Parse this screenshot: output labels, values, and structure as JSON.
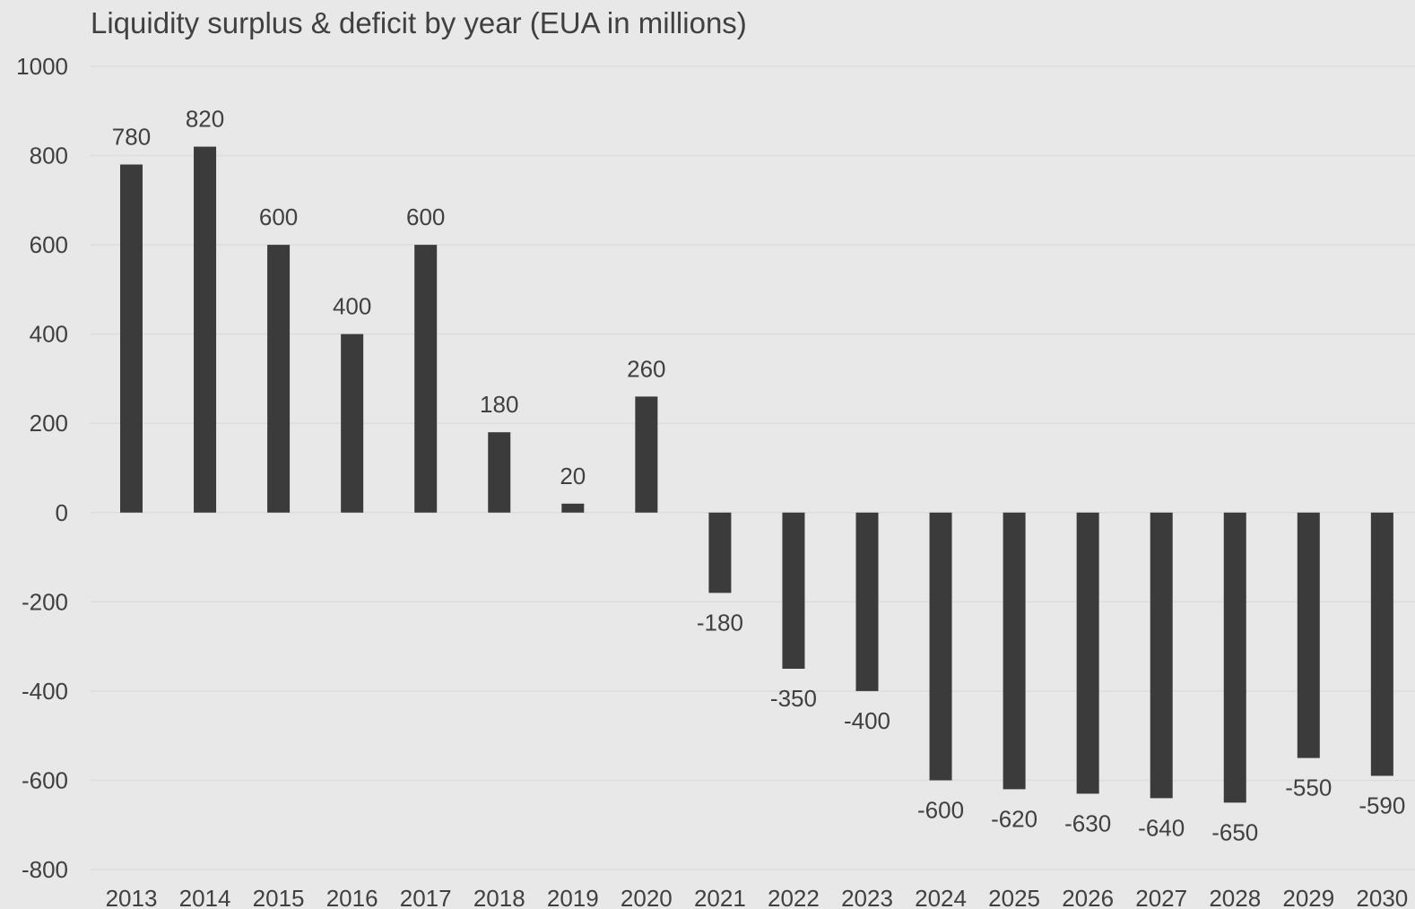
{
  "chart_data": {
    "type": "bar",
    "title": "Liquidity surplus & deficit by year (EUA in millions)",
    "xlabel": "",
    "ylabel": "",
    "categories": [
      "2013",
      "2014",
      "2015",
      "2016",
      "2017",
      "2018",
      "2019",
      "2020",
      "2021",
      "2022",
      "2023",
      "2024",
      "2025",
      "2026",
      "2027",
      "2028",
      "2029",
      "2030"
    ],
    "values": [
      780,
      820,
      600,
      400,
      600,
      180,
      20,
      260,
      -180,
      -350,
      -400,
      -600,
      -620,
      -630,
      -640,
      -650,
      -550,
      -590
    ],
    "ylim": [
      -800,
      1000
    ],
    "yticks": [
      1000,
      800,
      600,
      400,
      200,
      0,
      -200,
      -400,
      -600,
      -800
    ],
    "grid": true,
    "legend": "none",
    "bar_color": "#3b3b3b",
    "background_color": "#e8e8e8",
    "data_labels": true
  }
}
